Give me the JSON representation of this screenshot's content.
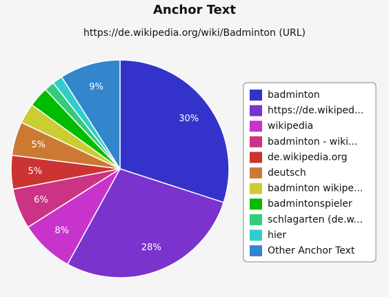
{
  "chart_data": {
    "type": "pie",
    "title": "Anchor Text",
    "subtitle": "https://de.wikipedia.org/wiki/Badminton (URL)",
    "categories": [
      "badminton",
      "https://de.wikiped...",
      "wikipedia",
      "badminton - wiki...",
      "de.wikipedia.org",
      "deutsch",
      "badminton wikipe...",
      "badmintonspieler",
      "schlagarten (de.w...",
      "hier",
      "Other Anchor Text"
    ],
    "values": [
      30,
      28,
      8,
      6,
      5,
      5,
      3,
      3,
      1.5,
      1.5,
      9
    ],
    "value_labels": [
      "30%",
      "28%",
      "8%",
      "6%",
      "5%",
      "5%",
      null,
      null,
      null,
      null,
      "9%"
    ],
    "colors": [
      "#3333cc",
      "#7a33cc",
      "#c833cc",
      "#cc3385",
      "#cc3333",
      "#cc7a33",
      "#cccc33",
      "#00bb00",
      "#33cc7a",
      "#33cccc",
      "#3385cc"
    ],
    "legend": "right"
  }
}
